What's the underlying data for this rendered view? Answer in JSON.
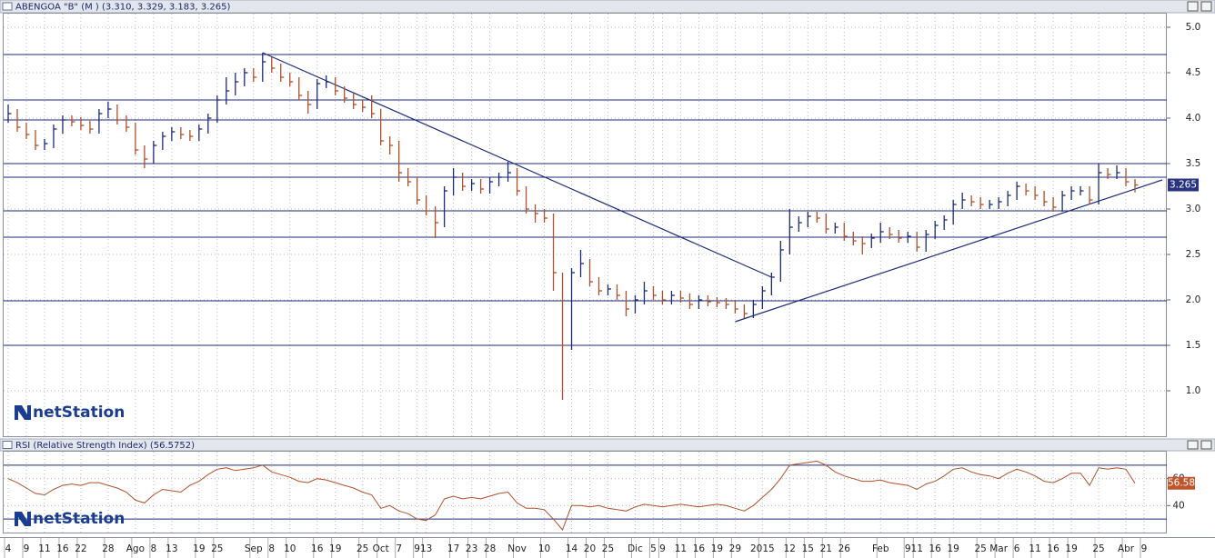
{
  "chart_data": {
    "type": "ohlc",
    "title": "ABENGOA \"B\" (M ) (3.310, 3.329, 3.183, 3.265)",
    "logo": "netStation",
    "last_price": 3.265,
    "up_color": "#1c2a78",
    "down_color": "#b0502a",
    "line_color": "#1c2a78",
    "grid": true,
    "ylim": [
      0.5,
      5.15
    ],
    "yticks": [
      {
        "value": 1,
        "label": "1.0"
      },
      1.5,
      {
        "value": 2,
        "label": "2.0"
      },
      2.5,
      {
        "value": 3,
        "label": "3.0"
      },
      3.5,
      {
        "value": 4,
        "label": "4.0"
      },
      4.5,
      {
        "value": 5,
        "label": "5.0"
      }
    ],
    "categories": [
      "4",
      null,
      "9",
      null,
      "11",
      null,
      "16",
      null,
      "22",
      null,
      null,
      "28",
      null,
      null,
      "Ago",
      null,
      "8",
      null,
      "13",
      null,
      null,
      "19",
      null,
      "25",
      null,
      null,
      null,
      "Sep",
      null,
      "8",
      null,
      "10",
      null,
      null,
      "16",
      null,
      "19",
      null,
      null,
      "25",
      null,
      "Oct",
      null,
      "7",
      null,
      "9",
      "13",
      null,
      null,
      "17",
      null,
      "23",
      null,
      "28",
      null,
      null,
      "Nov",
      null,
      null,
      "10",
      null,
      null,
      "14",
      null,
      "20",
      null,
      "25",
      null,
      null,
      "Dic",
      null,
      "5",
      "9",
      null,
      "11",
      null,
      "16",
      null,
      "19",
      null,
      "29",
      null,
      null,
      "2015",
      null,
      null,
      "12",
      null,
      "15",
      null,
      "21",
      null,
      "26",
      null,
      null,
      null,
      "Feb",
      null,
      null,
      "9",
      "11",
      null,
      "16",
      null,
      "19",
      null,
      null,
      "25",
      null,
      "Mar",
      null,
      "6",
      null,
      "11",
      null,
      "16",
      null,
      "19",
      null,
      null,
      "25",
      null,
      null,
      "Abr",
      null,
      "9",
      null,
      null
    ],
    "high": [
      4.15,
      4.1,
      3.95,
      3.87,
      3.77,
      3.93,
      4.03,
      4.03,
      4.01,
      3.97,
      4.1,
      4.18,
      4.15,
      4.03,
      3.95,
      3.7,
      3.75,
      3.85,
      3.9,
      3.9,
      3.87,
      3.93,
      4.05,
      4.25,
      4.45,
      4.5,
      4.55,
      4.55,
      4.72,
      4.67,
      4.6,
      4.5,
      4.45,
      4.3,
      4.43,
      4.47,
      4.45,
      4.35,
      4.27,
      4.2,
      4.25,
      4.1,
      3.8,
      3.75,
      3.45,
      3.35,
      3.15,
      3.03,
      3.25,
      3.45,
      3.4,
      3.33,
      3.33,
      3.35,
      3.4,
      3.52,
      3.45,
      3.25,
      3.05,
      3.0,
      2.95,
      2.3,
      2.35,
      2.55,
      2.45,
      2.25,
      2.17,
      2.17,
      2.1,
      2.05,
      2.2,
      2.15,
      2.1,
      2.1,
      2.1,
      2.07,
      2.05,
      2.05,
      2.03,
      2.02,
      2.0,
      1.95,
      2.0,
      2.15,
      2.3,
      2.65,
      3.0,
      2.92,
      2.97,
      2.97,
      2.95,
      2.85,
      2.85,
      2.75,
      2.7,
      2.73,
      2.85,
      2.8,
      2.77,
      2.75,
      2.75,
      2.77,
      2.87,
      2.93,
      3.1,
      3.18,
      3.15,
      3.13,
      3.1,
      3.13,
      3.2,
      3.3,
      3.28,
      3.25,
      3.2,
      3.13,
      3.2,
      3.25,
      3.25,
      3.25,
      3.5,
      3.45,
      3.48,
      3.45,
      3.329,
      null,
      null,
      null
    ],
    "low": [
      3.95,
      3.85,
      3.77,
      3.65,
      3.65,
      3.67,
      3.83,
      3.91,
      3.87,
      3.83,
      3.83,
      4.0,
      3.93,
      3.85,
      3.6,
      3.45,
      3.5,
      3.65,
      3.75,
      3.77,
      3.75,
      3.75,
      3.83,
      3.95,
      4.15,
      4.25,
      4.35,
      4.4,
      4.4,
      4.5,
      4.4,
      4.35,
      4.2,
      4.05,
      4.1,
      4.33,
      4.25,
      4.17,
      4.1,
      4.07,
      4.0,
      3.7,
      3.6,
      3.3,
      3.25,
      3.05,
      2.93,
      2.68,
      2.8,
      3.15,
      3.2,
      3.2,
      3.17,
      3.17,
      3.25,
      3.3,
      3.15,
      2.95,
      2.85,
      2.85,
      2.1,
      0.9,
      1.45,
      2.25,
      2.15,
      2.05,
      2.05,
      2.0,
      1.82,
      1.85,
      1.95,
      2.0,
      1.95,
      1.95,
      1.97,
      1.9,
      1.9,
      1.93,
      1.92,
      1.9,
      1.85,
      1.8,
      1.8,
      1.9,
      2.05,
      2.2,
      2.5,
      2.75,
      2.8,
      2.85,
      2.73,
      2.73,
      2.65,
      2.6,
      2.5,
      2.57,
      2.63,
      2.67,
      2.63,
      2.63,
      2.53,
      2.53,
      2.67,
      2.77,
      2.83,
      3.0,
      3.03,
      3.0,
      3.0,
      3.0,
      3.03,
      3.1,
      3.15,
      3.1,
      3.03,
      2.97,
      2.97,
      3.1,
      3.15,
      3.05,
      3.05,
      3.33,
      3.33,
      3.25,
      3.183,
      null,
      null,
      null
    ],
    "close": [
      4.05,
      3.9,
      3.82,
      3.7,
      3.72,
      3.88,
      3.98,
      3.96,
      3.92,
      3.88,
      4.05,
      4.1,
      3.98,
      3.9,
      3.65,
      3.55,
      3.7,
      3.8,
      3.85,
      3.82,
      3.8,
      3.88,
      4.0,
      4.2,
      4.3,
      4.4,
      4.5,
      4.45,
      4.62,
      4.55,
      4.45,
      4.4,
      4.25,
      4.15,
      4.38,
      4.4,
      4.3,
      4.22,
      4.15,
      4.12,
      4.05,
      3.75,
      3.7,
      3.4,
      3.3,
      3.1,
      2.98,
      2.85,
      3.2,
      3.35,
      3.25,
      3.28,
      3.22,
      3.3,
      3.35,
      3.4,
      3.2,
      3.0,
      2.95,
      2.9,
      2.3,
      1.5,
      2.3,
      2.4,
      2.2,
      2.1,
      2.12,
      2.05,
      1.9,
      2.0,
      2.1,
      2.05,
      2.0,
      2.05,
      2.02,
      1.95,
      2.0,
      1.98,
      1.97,
      1.95,
      1.9,
      1.85,
      1.95,
      2.1,
      2.25,
      2.55,
      2.8,
      2.85,
      2.92,
      2.9,
      2.78,
      2.8,
      2.7,
      2.65,
      2.62,
      2.68,
      2.75,
      2.72,
      2.68,
      2.7,
      2.58,
      2.72,
      2.82,
      2.88,
      3.05,
      3.1,
      3.08,
      3.05,
      3.05,
      3.08,
      3.15,
      3.25,
      3.2,
      3.15,
      3.08,
      3.02,
      3.15,
      3.2,
      3.2,
      3.1,
      3.4,
      3.38,
      3.4,
      3.3,
      3.265,
      null,
      null,
      null
    ],
    "hlines": [
      4.7,
      4.2,
      3.98,
      3.5,
      3.35,
      2.98,
      2.69,
      1.99,
      1.5
    ],
    "trendlines": [
      {
        "x": [
          28,
          84
        ],
        "y": [
          4.72,
          2.25
        ]
      },
      {
        "x": [
          80,
          127
        ],
        "y": [
          1.76,
          3.32
        ]
      }
    ],
    "indicator": {
      "title": "RSI (Relative Strength Index) (56.5752)",
      "color": "#b0502a",
      "last_value": 56.58,
      "ylim": [
        20,
        80
      ],
      "yticks": [
        40,
        60
      ],
      "levels": [
        30,
        70
      ],
      "values": [
        60,
        57,
        53,
        49,
        48,
        52,
        55,
        56,
        55,
        57,
        57,
        55,
        53,
        50,
        44,
        42,
        48,
        52,
        51,
        50,
        55,
        58,
        63,
        67,
        68,
        66,
        67,
        68,
        70,
        65,
        63,
        61,
        58,
        57,
        60,
        59,
        57,
        55,
        53,
        50,
        48,
        38,
        40,
        36,
        34,
        30,
        29,
        33,
        45,
        47,
        45,
        46,
        45,
        47,
        49,
        50,
        42,
        38,
        38,
        37,
        30,
        22,
        40,
        40,
        39,
        40,
        38,
        37,
        36,
        39,
        41,
        40,
        39,
        40,
        41,
        40,
        39,
        40,
        41,
        40,
        38,
        36,
        40,
        46,
        52,
        60,
        70,
        71,
        72,
        73,
        70,
        65,
        62,
        60,
        58,
        58,
        59,
        57,
        56,
        55,
        52,
        56,
        58,
        62,
        67,
        68,
        65,
        63,
        62,
        60,
        64,
        67,
        65,
        62,
        58,
        57,
        60,
        64,
        64,
        55,
        68,
        67,
        68,
        67,
        56.58,
        null,
        null,
        null
      ]
    }
  }
}
